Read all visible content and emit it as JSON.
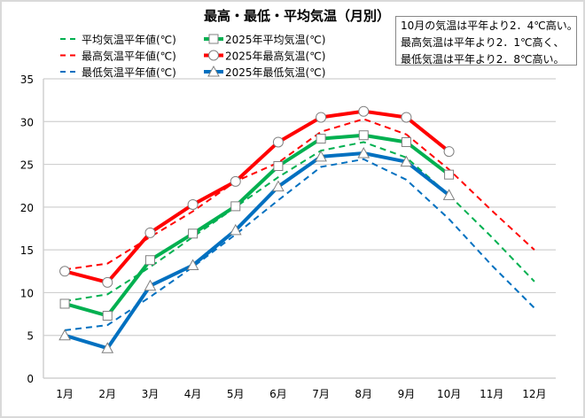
{
  "chart_data": {
    "type": "line",
    "title": "最高・最低・平均気温（月別）",
    "categories": [
      "1月",
      "2月",
      "3月",
      "4月",
      "5月",
      "6月",
      "7月",
      "8月",
      "9月",
      "10月",
      "11月",
      "12月"
    ],
    "ylim": [
      0,
      35
    ],
    "yticks": [
      0,
      5,
      10,
      15,
      20,
      25,
      30,
      35
    ],
    "grid": true,
    "legend_placement": "top-left",
    "series": [
      {
        "name": "平均気温平年値(℃)",
        "style": "dashed",
        "color": "#00b050",
        "marker": "none",
        "values": [
          9.0,
          9.8,
          13.0,
          16.5,
          20.0,
          23.5,
          26.6,
          27.6,
          25.8,
          21.4,
          16.5,
          11.3
        ]
      },
      {
        "name": "2025年平均気温(℃)",
        "style": "solid",
        "color": "#00b050",
        "marker": "square",
        "values": [
          8.7,
          7.3,
          13.8,
          16.9,
          20.1,
          24.8,
          28.0,
          28.4,
          27.6,
          23.8,
          null,
          null
        ]
      },
      {
        "name": "最高気温平年値(℃)",
        "style": "dashed",
        "color": "#ff0000",
        "marker": "none",
        "values": [
          12.7,
          13.4,
          16.5,
          19.5,
          23.0,
          25.2,
          28.8,
          30.3,
          28.5,
          24.4,
          19.6,
          15.0
        ]
      },
      {
        "name": "2025年最高気温(℃)",
        "style": "solid",
        "color": "#ff0000",
        "marker": "circle",
        "values": [
          12.5,
          11.2,
          17.0,
          20.3,
          23.0,
          27.6,
          30.5,
          31.2,
          30.5,
          26.5,
          null,
          null
        ]
      },
      {
        "name": "最低気温平年値(℃)",
        "style": "dashed",
        "color": "#0070c0",
        "marker": "none",
        "values": [
          5.6,
          6.2,
          9.5,
          13.0,
          16.8,
          20.8,
          24.7,
          25.6,
          23.2,
          18.6,
          13.2,
          8.2
        ]
      },
      {
        "name": "2025年最低気温(℃)",
        "style": "solid",
        "color": "#0070c0",
        "marker": "triangle",
        "values": [
          5.0,
          3.5,
          10.8,
          13.2,
          17.3,
          22.4,
          25.9,
          26.3,
          25.3,
          21.4,
          null,
          null
        ]
      }
    ],
    "annotation": [
      "10月の気温は平年より2．4℃高い。",
      "最高気温は平年より2．1℃高く、",
      "最低気温は平年より2．8℃高い。"
    ]
  }
}
